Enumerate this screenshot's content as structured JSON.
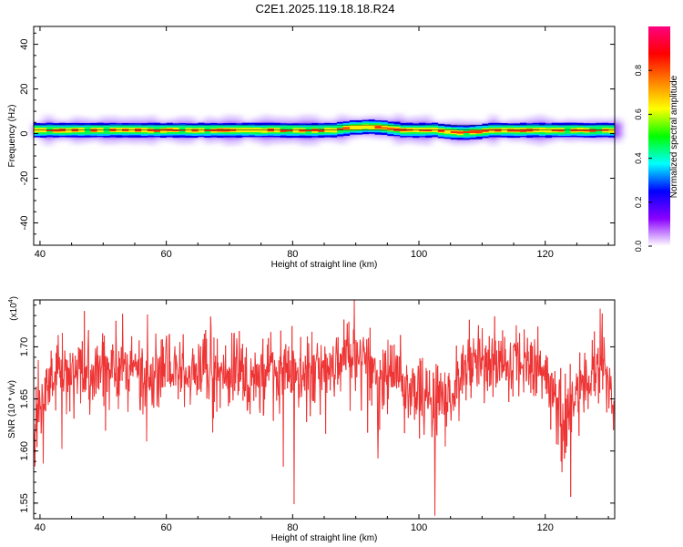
{
  "page_title": "C2E1.2025.119.18.18.R24",
  "chart_data": [
    {
      "type": "heatmap",
      "title": "C2E1.2025.119.18.18.R24",
      "xlabel": "Height of straight line (km)",
      "ylabel": "Frequency (Hz)",
      "xlim": [
        39,
        131
      ],
      "ylim": [
        -50,
        48
      ],
      "xticks": [
        40,
        60,
        80,
        100,
        120
      ],
      "yticks": [
        40,
        20,
        0,
        -20,
        -40
      ],
      "grid": false,
      "band": {
        "center_hz": 1.5,
        "core_halfwidth_hz": 2,
        "outer_halfwidth_hz": 5.5,
        "note_shifts": [
          {
            "x": [
              86,
              97
            ],
            "shift_hz": 1.5
          },
          {
            "x": [
              102,
              111
            ],
            "shift_hz": -1
          }
        ]
      },
      "colorbar": {
        "label": "Normalized spectral amplitude",
        "range": [
          0,
          1
        ],
        "ticks": [
          "0.0",
          "0.2",
          "0.4",
          "0.6",
          "0.8"
        ],
        "tick_values": [
          0,
          0.2,
          0.4,
          0.6,
          0.8
        ],
        "colors": [
          "#ffffff",
          "#8a00ff",
          "#0000ff",
          "#00ffff",
          "#00ff00",
          "#ffff00",
          "#ff8000",
          "#ff0000",
          "#ff0080"
        ]
      }
    },
    {
      "type": "line",
      "xlabel": "Height of straight line (km)",
      "ylabel": "SNR (10 * v/v)",
      "multiplier": "(x10",
      "multiplier_exp": "4",
      "multiplier_close": ")",
      "xlim": [
        39,
        131
      ],
      "ylim": [
        1.535,
        1.745
      ],
      "xticks": [
        40,
        60,
        80,
        100,
        120
      ],
      "yticks": [
        "1.55",
        "1.60",
        "1.65",
        "1.70"
      ],
      "ytick_values": [
        1.55,
        1.6,
        1.65,
        1.7
      ],
      "grid": false,
      "series": [
        {
          "color": "#ee3333",
          "x": [
            39,
            40,
            41,
            42,
            43,
            44,
            45,
            46,
            47,
            48,
            49,
            50,
            51,
            52,
            53,
            54,
            55,
            56,
            57,
            58,
            59,
            60,
            61,
            62,
            63,
            64,
            65,
            66,
            67,
            68,
            69,
            70,
            71,
            72,
            73,
            74,
            75,
            76,
            77,
            78,
            79,
            80,
            81,
            82,
            83,
            84,
            85,
            86,
            87,
            88,
            89,
            90,
            91,
            92,
            93,
            94,
            95,
            96,
            97,
            98,
            99,
            100,
            101,
            102,
            103,
            104,
            105,
            106,
            107,
            108,
            109,
            110,
            111,
            112,
            113,
            114,
            115,
            116,
            117,
            118,
            119,
            120,
            121,
            122,
            123,
            124,
            125,
            126,
            127,
            128,
            129,
            130,
            131
          ],
          "trend": [
            1.615,
            1.64,
            1.66,
            1.67,
            1.675,
            1.675,
            1.675,
            1.68,
            1.68,
            1.675,
            1.68,
            1.68,
            1.675,
            1.675,
            1.68,
            1.675,
            1.68,
            1.675,
            1.665,
            1.67,
            1.675,
            1.68,
            1.68,
            1.675,
            1.68,
            1.675,
            1.68,
            1.675,
            1.68,
            1.68,
            1.675,
            1.67,
            1.68,
            1.675,
            1.67,
            1.675,
            1.67,
            1.675,
            1.675,
            1.67,
            1.68,
            1.675,
            1.675,
            1.67,
            1.675,
            1.68,
            1.68,
            1.68,
            1.685,
            1.69,
            1.69,
            1.69,
            1.685,
            1.68,
            1.665,
            1.66,
            1.665,
            1.675,
            1.67,
            1.66,
            1.655,
            1.65,
            1.65,
            1.645,
            1.645,
            1.645,
            1.65,
            1.665,
            1.68,
            1.685,
            1.685,
            1.69,
            1.685,
            1.69,
            1.68,
            1.675,
            1.685,
            1.685,
            1.69,
            1.685,
            1.68,
            1.675,
            1.665,
            1.65,
            1.635,
            1.64,
            1.655,
            1.66,
            1.665,
            1.67,
            1.69,
            1.665,
            1.64
          ],
          "dips": [
            {
              "x": 40.5,
              "y": 1.588
            },
            {
              "x": 43.5,
              "y": 1.602
            },
            {
              "x": 57,
              "y": 1.567
            },
            {
              "x": 78.5,
              "y": 1.585
            },
            {
              "x": 80.2,
              "y": 1.549
            },
            {
              "x": 93.5,
              "y": 1.593
            },
            {
              "x": 102.5,
              "y": 1.538
            },
            {
              "x": 124,
              "y": 1.556
            },
            {
              "x": 122.5,
              "y": 1.59
            }
          ],
          "peaks": [
            {
              "x": 89.8,
              "y": 1.745
            },
            {
              "x": 57,
              "y": 1.731
            },
            {
              "x": 67,
              "y": 1.729
            },
            {
              "x": 129,
              "y": 1.732
            },
            {
              "x": 108,
              "y": 1.726
            },
            {
              "x": 52,
              "y": 1.725
            }
          ],
          "noise_amplitude": 0.035,
          "samples": 1400
        }
      ]
    }
  ]
}
